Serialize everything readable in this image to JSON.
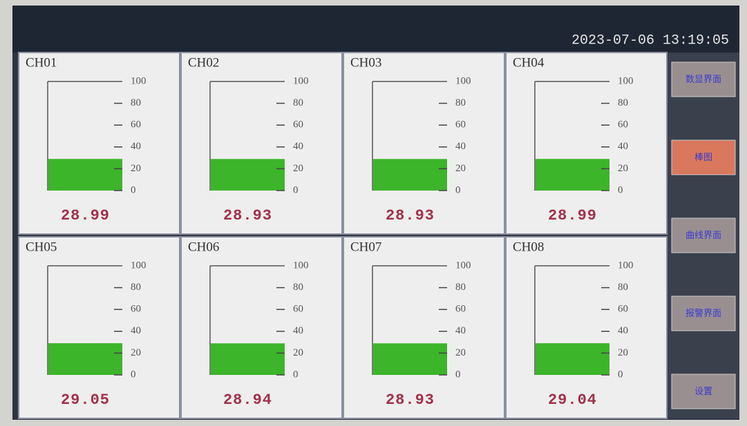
{
  "header": {
    "datetime": "2023-07-06 13:19:05"
  },
  "scale": {
    "ticks": [
      0,
      20,
      40,
      60,
      80,
      100
    ]
  },
  "channels": [
    {
      "label": "CH01",
      "value": 28.99
    },
    {
      "label": "CH02",
      "value": 28.93
    },
    {
      "label": "CH03",
      "value": 28.93
    },
    {
      "label": "CH04",
      "value": 28.99
    },
    {
      "label": "CH05",
      "value": 29.05
    },
    {
      "label": "CH06",
      "value": 28.94
    },
    {
      "label": "CH07",
      "value": 28.93
    },
    {
      "label": "CH08",
      "value": 29.04
    }
  ],
  "nav": [
    "数显界面",
    "棒图",
    "曲线界面",
    "报警界面",
    "设置"
  ]
}
